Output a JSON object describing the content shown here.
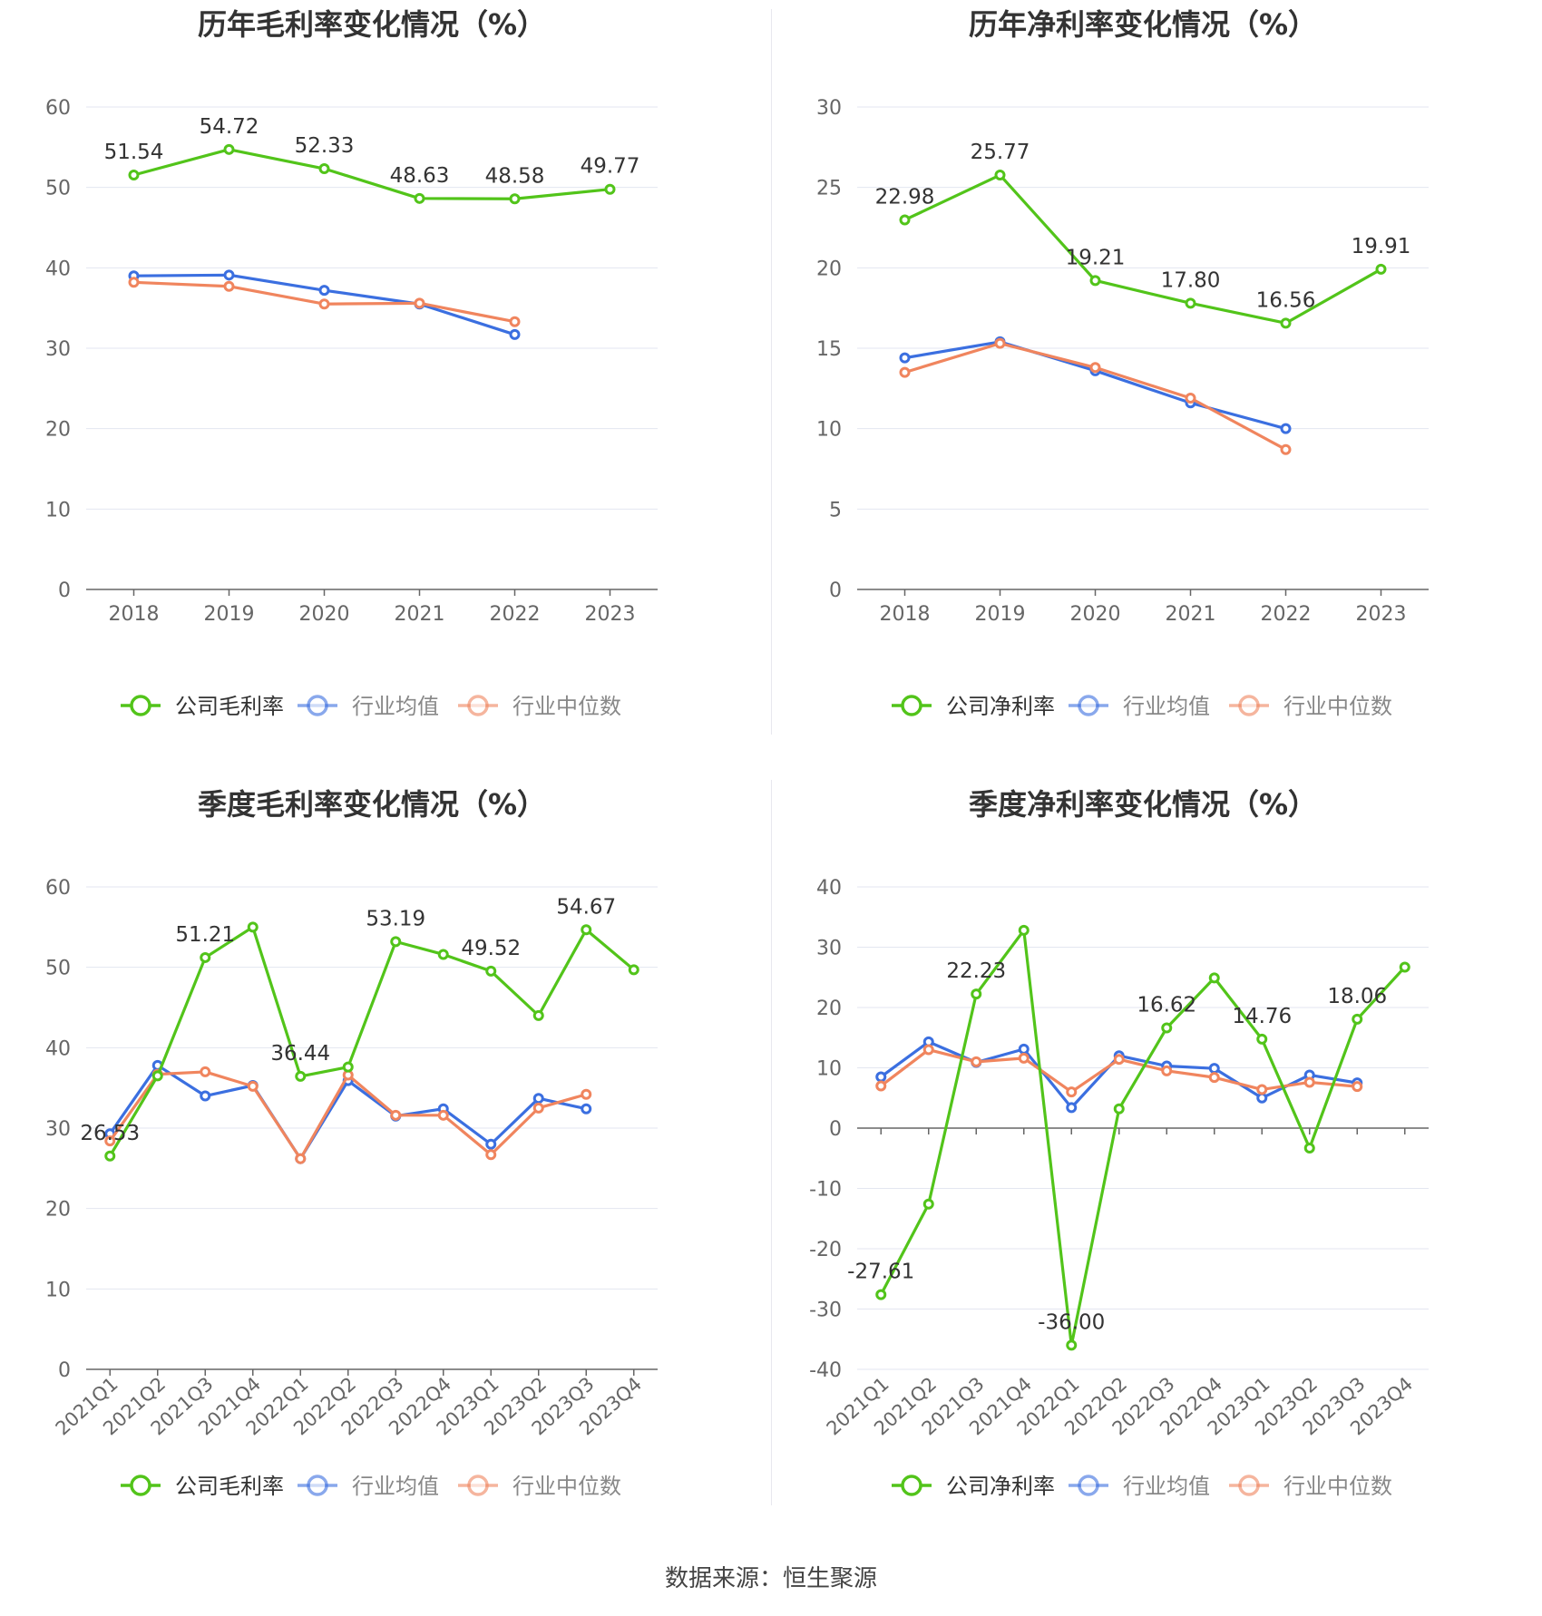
{
  "colors": {
    "company": "#52c41a",
    "average": "#3b6fe0",
    "median": "#f0855e"
  },
  "source_text": "数据来源：恒生聚源",
  "chart_data": [
    {
      "type": "line",
      "title": "历年毛利率变化情况（%）",
      "categories": [
        "2018",
        "2019",
        "2020",
        "2021",
        "2022",
        "2023"
      ],
      "ylim": [
        0,
        60
      ],
      "yticks": [
        0,
        10,
        20,
        30,
        40,
        50,
        60
      ],
      "rotate_labels": false,
      "legend_position": "bottom-center",
      "series": [
        {
          "name": "公司毛利率",
          "values": [
            51.54,
            54.72,
            52.33,
            48.63,
            48.58,
            49.77
          ],
          "labels": [
            "51.54",
            "54.72",
            "52.33",
            "48.63",
            "48.58",
            "49.77"
          ]
        },
        {
          "name": "行业均值",
          "values": [
            39.0,
            39.1,
            37.2,
            35.5,
            31.7,
            null
          ]
        },
        {
          "name": "行业中位数",
          "values": [
            38.2,
            37.7,
            35.5,
            35.6,
            33.3,
            null
          ]
        }
      ]
    },
    {
      "type": "line",
      "title": "历年净利率变化情况（%）",
      "categories": [
        "2018",
        "2019",
        "2020",
        "2021",
        "2022",
        "2023"
      ],
      "ylim": [
        0,
        30
      ],
      "yticks": [
        0,
        5,
        10,
        15,
        20,
        25,
        30
      ],
      "rotate_labels": false,
      "legend_position": "bottom-center",
      "series": [
        {
          "name": "公司净利率",
          "values": [
            22.98,
            25.77,
            19.21,
            17.8,
            16.56,
            19.91
          ],
          "labels": [
            "22.98",
            "25.77",
            "19.21",
            "17.80",
            "16.56",
            "19.91"
          ]
        },
        {
          "name": "行业均值",
          "values": [
            14.4,
            15.4,
            13.6,
            11.6,
            10.0,
            null
          ]
        },
        {
          "name": "行业中位数",
          "values": [
            13.5,
            15.3,
            13.8,
            11.9,
            8.7,
            null
          ]
        }
      ]
    },
    {
      "type": "line",
      "title": "季度毛利率变化情况（%）",
      "categories": [
        "2021Q1",
        "2021Q2",
        "2021Q3",
        "2021Q4",
        "2022Q1",
        "2022Q2",
        "2022Q3",
        "2022Q4",
        "2023Q1",
        "2023Q2",
        "2023Q3",
        "2023Q4"
      ],
      "ylim": [
        0,
        60
      ],
      "yticks": [
        0,
        10,
        20,
        30,
        40,
        50,
        60
      ],
      "rotate_labels": true,
      "legend_position": "bottom-center",
      "series": [
        {
          "name": "公司毛利率",
          "values": [
            26.53,
            36.5,
            51.21,
            55.0,
            36.44,
            37.6,
            53.19,
            51.6,
            49.52,
            44.0,
            54.67,
            49.7
          ],
          "labels": [
            "26.53",
            "",
            "51.21",
            "",
            "36.44",
            "",
            "53.19",
            "",
            "49.52",
            "",
            "54.67",
            ""
          ]
        },
        {
          "name": "行业均值",
          "values": [
            29.3,
            37.8,
            34.0,
            35.3,
            26.2,
            35.9,
            31.5,
            32.4,
            28.0,
            33.7,
            32.4,
            null
          ]
        },
        {
          "name": "行业中位数",
          "values": [
            28.4,
            36.7,
            37.0,
            35.2,
            26.2,
            36.6,
            31.6,
            31.6,
            26.7,
            32.5,
            34.2,
            null
          ]
        }
      ]
    },
    {
      "type": "line",
      "title": "季度净利率变化情况（%）",
      "categories": [
        "2021Q1",
        "2021Q2",
        "2021Q3",
        "2021Q4",
        "2022Q1",
        "2022Q2",
        "2022Q3",
        "2022Q4",
        "2023Q1",
        "2023Q2",
        "2023Q3",
        "2023Q4"
      ],
      "ylim": [
        -40,
        40
      ],
      "yticks": [
        -40,
        -30,
        -20,
        -10,
        0,
        10,
        20,
        30,
        40
      ],
      "rotate_labels": true,
      "legend_position": "bottom-center",
      "series": [
        {
          "name": "公司净利率",
          "values": [
            -27.61,
            -12.6,
            22.23,
            32.8,
            -36.0,
            3.2,
            16.62,
            24.9,
            14.76,
            -3.3,
            18.06,
            26.7
          ],
          "labels": [
            "-27.61",
            "",
            "22.23",
            "",
            "-36.00",
            "",
            "16.62",
            "",
            "14.76",
            "",
            "18.06",
            ""
          ]
        },
        {
          "name": "行业均值",
          "values": [
            8.5,
            14.3,
            10.9,
            13.1,
            3.4,
            12.0,
            10.3,
            9.9,
            5.0,
            8.8,
            7.5,
            null
          ]
        },
        {
          "name": "行业中位数",
          "values": [
            7.0,
            13.0,
            11.0,
            11.6,
            6.0,
            11.4,
            9.5,
            8.4,
            6.4,
            7.6,
            6.9,
            null
          ]
        }
      ]
    }
  ]
}
